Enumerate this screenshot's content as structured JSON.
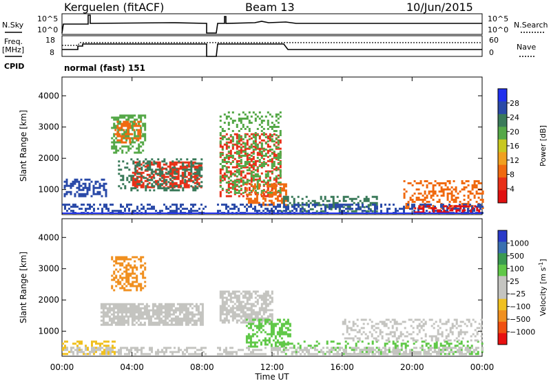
{
  "header": {
    "station": "Kerguelen (fitACF)",
    "beam": "Beam 13",
    "date": "10/Jun/2015"
  },
  "top_panels": {
    "nsky_label": "N.Sky",
    "nsky_ticks": [
      "10^5",
      "10^0"
    ],
    "nsearch_label": "N.Search",
    "freq_label": "Freq.",
    "freq_unit": "[MHz]",
    "freq_ticks": [
      "18",
      "8"
    ],
    "nave_label": "Nave",
    "nave_ticks": [
      "60",
      "0"
    ],
    "cpid_label": "CPID",
    "cpid_text": "normal (fast) 151"
  },
  "chart_data": [
    {
      "type": "heatmap",
      "name": "power",
      "ylabel": "Slant Range [km]",
      "yticks": [
        "4000",
        "3000",
        "2000",
        "1000"
      ],
      "ylim": [
        200,
        4600
      ],
      "colorbar_label": "Power [dB]",
      "colorbar_ticks": [
        "28",
        "24",
        "20",
        "16",
        "12",
        "8",
        "4"
      ],
      "colorbar_colors": [
        "#2030ee",
        "#2a4aa8",
        "#3a7a5a",
        "#55a848",
        "#c8c820",
        "#f0a020",
        "#f06a10",
        "#e83018",
        "#e01010"
      ],
      "scatter_regions": [
        {
          "t0": 2.8,
          "t1": 4.7,
          "r0": 2200,
          "r1": 3400,
          "color": "#55a848",
          "density": 0.55
        },
        {
          "t0": 3.0,
          "t1": 4.5,
          "r0": 2500,
          "r1": 3200,
          "color": "#f06a10",
          "density": 0.45
        },
        {
          "t0": 4.0,
          "t1": 7.9,
          "r0": 1100,
          "r1": 1900,
          "color": "#e83018",
          "density": 0.6
        },
        {
          "t0": 3.2,
          "t1": 8.0,
          "r0": 1000,
          "r1": 2000,
          "color": "#3a7a5a",
          "density": 0.35
        },
        {
          "t0": 0.1,
          "t1": 2.5,
          "r0": 800,
          "r1": 1350,
          "color": "#2a4aa8",
          "density": 0.5
        },
        {
          "t0": 9.0,
          "t1": 12.5,
          "r0": 800,
          "r1": 2800,
          "color": "#e83018",
          "density": 0.45
        },
        {
          "t0": 9.0,
          "t1": 12.5,
          "r0": 900,
          "r1": 3500,
          "color": "#55a848",
          "density": 0.3
        },
        {
          "t0": 10.5,
          "t1": 12.8,
          "r0": 500,
          "r1": 1200,
          "color": "#f06a10",
          "density": 0.5
        },
        {
          "t0": 12.5,
          "t1": 18.0,
          "r0": 300,
          "r1": 800,
          "color": "#3a7a5a",
          "density": 0.35
        },
        {
          "t0": 19.5,
          "t1": 24.0,
          "r0": 400,
          "r1": 1300,
          "color": "#f06a10",
          "density": 0.4
        },
        {
          "t0": 0.0,
          "t1": 24.0,
          "r0": 250,
          "r1": 550,
          "color": "#2a4aa8",
          "density": 0.4
        },
        {
          "t0": 20.0,
          "t1": 24.0,
          "r0": 250,
          "r1": 500,
          "color": "#e01010",
          "density": 0.4
        }
      ]
    },
    {
      "type": "heatmap",
      "name": "velocity",
      "ylabel": "Slant Range [km]",
      "yticks": [
        "4000",
        "3000",
        "2000",
        "1000"
      ],
      "ylim": [
        200,
        4600
      ],
      "colorbar_label": "Velocity [m s",
      "colorbar_label_sup": "-1",
      "colorbar_label_end": "]",
      "colorbar_ticks": [
        "1000",
        "500",
        "100",
        "25",
        "−25",
        "−100",
        "−500",
        "−1000"
      ],
      "colorbar_colors": [
        "#2a3ac8",
        "#3a70b0",
        "#3a9a50",
        "#60c848",
        "#c4c4c0",
        "#c4c4c0",
        "#f0c020",
        "#f09020",
        "#f05010",
        "#e81010"
      ],
      "scatter_regions": [
        {
          "t0": 2.8,
          "t1": 4.8,
          "r0": 2300,
          "r1": 3400,
          "color": "#f09020",
          "density": 0.5
        },
        {
          "t0": 2.2,
          "t1": 8.0,
          "r0": 1200,
          "r1": 1900,
          "color": "#c4c4c0",
          "density": 0.75
        },
        {
          "t0": 0.0,
          "t1": 3.0,
          "r0": 250,
          "r1": 700,
          "color": "#f0c020",
          "density": 0.4
        },
        {
          "t0": 9.0,
          "t1": 12.0,
          "r0": 1300,
          "r1": 2300,
          "color": "#c4c4c0",
          "density": 0.7
        },
        {
          "t0": 10.5,
          "t1": 13.0,
          "r0": 500,
          "r1": 1400,
          "color": "#60c848",
          "density": 0.5
        },
        {
          "t0": 12.5,
          "t1": 24.0,
          "r0": 300,
          "r1": 700,
          "color": "#60c848",
          "density": 0.3
        },
        {
          "t0": 16.0,
          "t1": 24.0,
          "r0": 700,
          "r1": 1400,
          "color": "#c4c4c0",
          "density": 0.35
        },
        {
          "t0": 0.0,
          "t1": 24.0,
          "r0": 250,
          "r1": 500,
          "color": "#c4c4c0",
          "density": 0.5
        }
      ]
    }
  ],
  "time_axis": {
    "ticks": [
      "00:00",
      "04:00",
      "08:00",
      "12:00",
      "16:00",
      "20:00",
      "00:00"
    ],
    "label": "Time UT",
    "range_hours": [
      0,
      24
    ],
    "gap_hours": [
      8.25,
      8.75
    ]
  }
}
